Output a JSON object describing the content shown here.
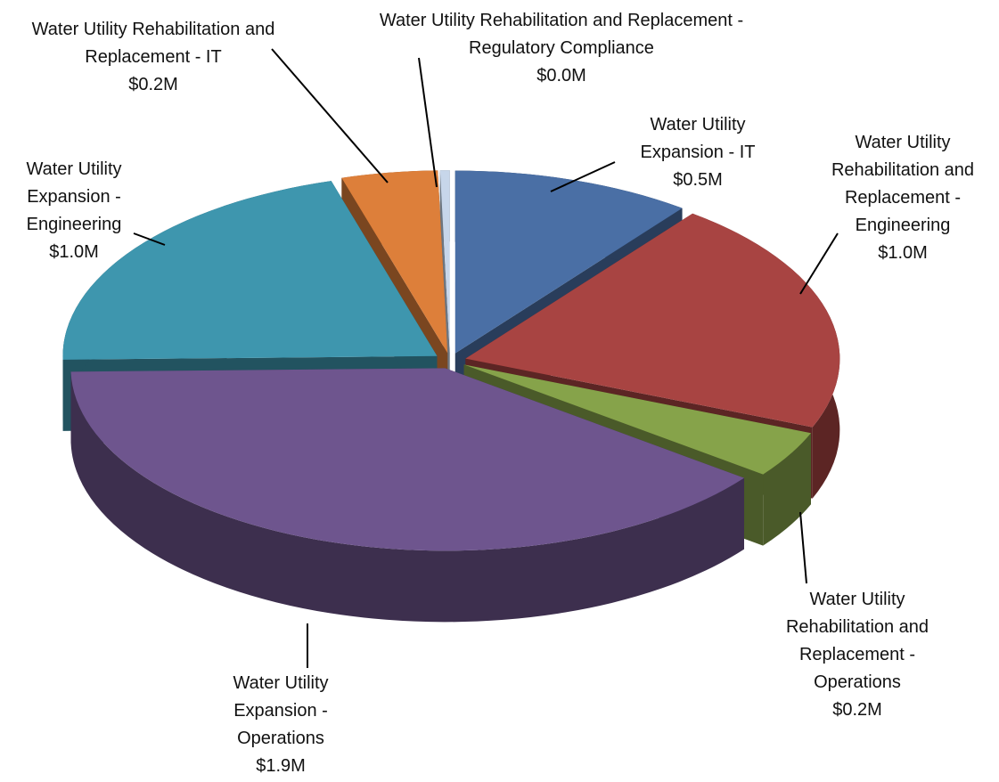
{
  "chart_data": {
    "type": "pie3d",
    "categories": [
      "Water Utility Expansion - IT",
      "Water Utility Rehabilitation and Replacement - Engineering",
      "Water Utility Rehabilitation and Replacement - Operations",
      "Water Utility Expansion - Operations",
      "Water Utility Expansion - Engineering",
      "Water Utility Rehabilitation and Replacement - IT",
      "Water Utility Rehabilitation and Replacement - Regulatory Compliance"
    ],
    "values": [
      0.5,
      1.0,
      0.2,
      1.9,
      1.0,
      0.2,
      0.02
    ],
    "value_labels": [
      "$0.5M",
      "$1.0M",
      "$0.2M",
      "$1.9M",
      "$1.0M",
      "$0.2M",
      "$0.0M"
    ],
    "colors": [
      "#4a6fa5",
      "#a84442",
      "#86a34a",
      "#6e558e",
      "#3e96ae",
      "#dd7f3a",
      "#c7d6ea"
    ]
  }
}
